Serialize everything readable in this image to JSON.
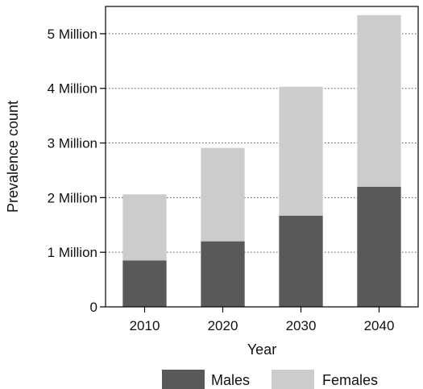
{
  "chart_data": {
    "type": "bar",
    "stacked": true,
    "categories": [
      "2010",
      "2020",
      "2030",
      "2040"
    ],
    "series": [
      {
        "name": "Males",
        "values": [
          0.85,
          1.2,
          1.67,
          2.2
        ],
        "color": "#595959"
      },
      {
        "name": "Females",
        "values": [
          1.21,
          1.71,
          2.36,
          3.14
        ],
        "color": "#cccccc"
      }
    ],
    "ylim": [
      0,
      5.5
    ],
    "yticks": [
      0,
      1,
      2,
      3,
      4,
      5
    ],
    "ytick_labels": [
      "0",
      "1 Million",
      "2 Million",
      "3 Million",
      "4 Million",
      "5 Million"
    ],
    "xlabel": "Year",
    "ylabel": "Prevalence count",
    "grid": "horizontal dotted",
    "legend_position": "bottom"
  }
}
